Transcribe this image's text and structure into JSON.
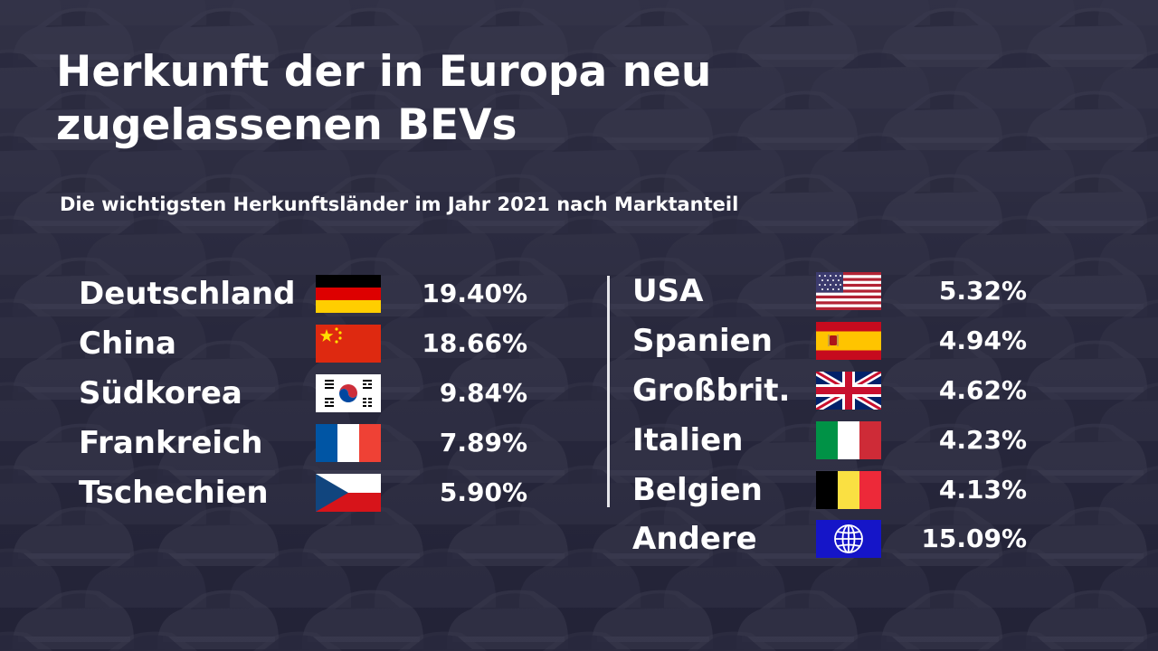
{
  "title_line1": "Herkunft der in Europa neu",
  "title_line2": "zugelassenen BEVs",
  "subtitle": "Die wichtigsten Herkunftsländer im Jahr 2021 nach Marktanteil",
  "colors": {
    "background": "#25253a",
    "text": "#ffffff",
    "divider": "#e6e6ea"
  },
  "chart_data": {
    "type": "table",
    "title": "Herkunft der in Europa neu zugelassenen BEVs",
    "subtitle": "Die wichtigsten Herkunftsländer im Jahr 2021 nach Marktanteil",
    "columns": [
      [
        {
          "country": "Deutschland",
          "value": "19.40%",
          "share": 19.4,
          "flag": "germany-flag"
        },
        {
          "country": "China",
          "value": "18.66%",
          "share": 18.66,
          "flag": "china-flag"
        },
        {
          "country": "Südkorea",
          "value": "9.84%",
          "share": 9.84,
          "flag": "south-korea-flag"
        },
        {
          "country": "Frankreich",
          "value": "7.89%",
          "share": 7.89,
          "flag": "france-flag"
        },
        {
          "country": "Tschechien",
          "value": "5.90%",
          "share": 5.9,
          "flag": "czech-flag"
        }
      ],
      [
        {
          "country": "USA",
          "value": "5.32%",
          "share": 5.32,
          "flag": "usa-flag"
        },
        {
          "country": "Spanien",
          "value": "4.94%",
          "share": 4.94,
          "flag": "spain-flag"
        },
        {
          "country": "Großbrit.",
          "value": "4.62%",
          "share": 4.62,
          "flag": "uk-flag"
        },
        {
          "country": "Italien",
          "value": "4.23%",
          "share": 4.23,
          "flag": "italy-flag"
        },
        {
          "country": "Belgien",
          "value": "4.13%",
          "share": 4.13,
          "flag": "belgium-flag"
        },
        {
          "country": "Andere",
          "value": "15.09%",
          "share": 15.09,
          "flag": "globe-icon"
        }
      ]
    ]
  }
}
